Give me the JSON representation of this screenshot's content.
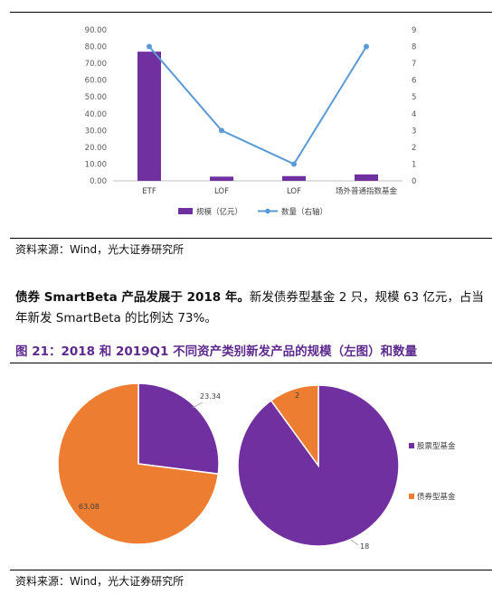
{
  "top_chart": {
    "chart_data": {
      "type": "bar",
      "categories": [
        "ETF",
        "LOF",
        "LOF",
        "场外普通指数基金"
      ],
      "series": [
        {
          "name": "规模（亿元）",
          "type": "bar",
          "axis": "left",
          "values": [
            77.0,
            2.5,
            2.8,
            3.8
          ]
        },
        {
          "name": "数量（右轴）",
          "type": "line",
          "axis": "right",
          "values": [
            8,
            3,
            1,
            8
          ]
        }
      ],
      "ylim_left": [
        0,
        90
      ],
      "ylim_right": [
        0,
        9
      ],
      "left_ticks": [
        "0.00",
        "10.00",
        "20.00",
        "30.00",
        "40.00",
        "50.00",
        "60.00",
        "70.00",
        "80.00",
        "90.00"
      ],
      "right_ticks": [
        "0",
        "1",
        "2",
        "3",
        "4",
        "5",
        "6",
        "7",
        "8",
        "9"
      ],
      "colors": {
        "bar": "#7030a0",
        "line": "#5b9bd5"
      },
      "grid": false,
      "legend_placement": "bottom"
    }
  },
  "source_1": "资料来源：Wind，光大证券研究所",
  "paragraph": {
    "bold": "债券 SmartBeta 产品发展于 2018 年。",
    "rest": "新发债券型基金 2 只，规模 63 亿元，占当年新发 SmartBeta 的比例达 73%。"
  },
  "figure_title": "图 21：2018 和 2019Q1 不同资产类别新发产品的规模（左图）和数量",
  "pie_charts": {
    "chart_data": [
      {
        "type": "pie",
        "labels": [
          "股票型基金",
          "债券型基金"
        ],
        "values": [
          23.34,
          63.08
        ],
        "value_labels": [
          "23.34",
          "63.08"
        ]
      },
      {
        "type": "pie",
        "labels": [
          "股票型基金",
          "债券型基金"
        ],
        "values": [
          18,
          2
        ],
        "value_labels": [
          "18",
          "2"
        ]
      }
    ],
    "colors": {
      "股票型基金": "#7030a0",
      "债券型基金": "#ed7d31"
    },
    "legend": [
      "股票型基金",
      "债券型基金"
    ]
  },
  "source_2": "资料来源：Wind，光大证券研究所"
}
